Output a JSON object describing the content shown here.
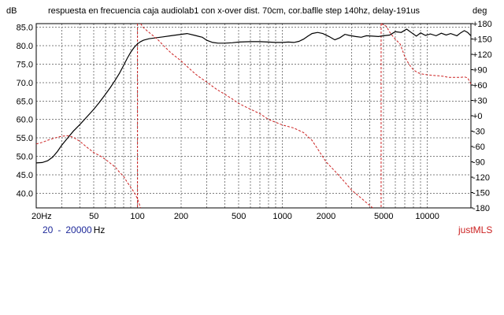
{
  "header": {
    "title": "respuesta en frecuencia caja audiolab1 con x-over dist. 70cm, cor.baflle step 140hz, delay-191us",
    "left_unit": "dB",
    "right_unit": "deg"
  },
  "footer": {
    "range_start": "20",
    "range_sep": "-",
    "range_end": "20000",
    "range_unit": "Hz",
    "brand": "justMLS"
  },
  "colors": {
    "magnitude": "#000000",
    "phase": "#cc2222",
    "grid": "#808080",
    "range_text": "#1f2a9a",
    "brand": "#cc2222"
  },
  "chart_data": {
    "type": "line",
    "title": "respuesta en frecuencia caja audiolab1 con x-over dist. 70cm, cor.baflle step 140hz, delay-191us",
    "x_scale": "log",
    "xlim": [
      20,
      20000
    ],
    "x_tick_labels": [
      "20Hz",
      "50",
      "100",
      "200",
      "500",
      "1000",
      "2000",
      "5000",
      "10000"
    ],
    "x_tick_values": [
      20,
      50,
      100,
      200,
      500,
      1000,
      2000,
      5000,
      10000
    ],
    "ylabel": "dB",
    "ylim": [
      36,
      86
    ],
    "y_tick_labels": [
      "85.0",
      "80.0",
      "75.0",
      "70.0",
      "65.0",
      "60.0",
      "55.0",
      "50.0",
      "45.0",
      "40.0"
    ],
    "y_tick_values": [
      85,
      80,
      75,
      70,
      65,
      60,
      55,
      50,
      45,
      40
    ],
    "y2label": "deg",
    "y2lim": [
      -180,
      180
    ],
    "y2_tick_labels": [
      "+180",
      "+150",
      "+120",
      "+90",
      "+60",
      "+30",
      "+0",
      "-30",
      "-60",
      "-90",
      "-120",
      "-150",
      "-180"
    ],
    "y2_tick_values": [
      180,
      150,
      120,
      90,
      60,
      30,
      0,
      -30,
      -60,
      -90,
      -120,
      -150,
      -180
    ],
    "grid": true,
    "series": [
      {
        "axis": "left",
        "style": "solid",
        "points": [
          [
            20,
            48.2
          ],
          [
            22,
            48.3
          ],
          [
            24,
            48.8
          ],
          [
            26,
            49.8
          ],
          [
            28,
            51.3
          ],
          [
            30,
            53
          ],
          [
            33,
            55
          ],
          [
            36,
            56.8
          ],
          [
            40,
            58.6
          ],
          [
            45,
            60.8
          ],
          [
            50,
            62.8
          ],
          [
            55,
            64.8
          ],
          [
            60,
            66.8
          ],
          [
            65,
            68.7
          ],
          [
            70,
            70.6
          ],
          [
            75,
            72.5
          ],
          [
            80,
            74.6
          ],
          [
            85,
            76.6
          ],
          [
            90,
            78.3
          ],
          [
            95,
            79.6
          ],
          [
            100,
            80.5
          ],
          [
            105,
            81.1
          ],
          [
            110,
            81.5
          ],
          [
            120,
            81.9
          ],
          [
            130,
            82.1
          ],
          [
            150,
            82.4
          ],
          [
            170,
            82.7
          ],
          [
            200,
            83.1
          ],
          [
            220,
            83.3
          ],
          [
            250,
            82.8
          ],
          [
            280,
            82.3
          ],
          [
            300,
            81.5
          ],
          [
            330,
            80.9
          ],
          [
            360,
            80.7
          ],
          [
            400,
            80.7
          ],
          [
            450,
            80.8
          ],
          [
            500,
            81
          ],
          [
            600,
            81.1
          ],
          [
            700,
            81.1
          ],
          [
            800,
            81
          ],
          [
            900,
            80.9
          ],
          [
            1000,
            80.9
          ],
          [
            1100,
            81
          ],
          [
            1200,
            80.9
          ],
          [
            1300,
            81.2
          ],
          [
            1400,
            81.8
          ],
          [
            1500,
            82.6
          ],
          [
            1600,
            83.3
          ],
          [
            1750,
            83.6
          ],
          [
            1900,
            83.3
          ],
          [
            2100,
            82.5
          ],
          [
            2300,
            81.6
          ],
          [
            2500,
            82.2
          ],
          [
            2700,
            83.1
          ],
          [
            2900,
            82.8
          ],
          [
            3200,
            82.5
          ],
          [
            3500,
            82.3
          ],
          [
            3800,
            82.7
          ],
          [
            4200,
            82.6
          ],
          [
            4600,
            82.5
          ],
          [
            5000,
            82.7
          ],
          [
            5500,
            82.9
          ],
          [
            6000,
            83.8
          ],
          [
            6600,
            83.6
          ],
          [
            7200,
            84.5
          ],
          [
            7800,
            83.5
          ],
          [
            8400,
            82.6
          ],
          [
            9000,
            83.5
          ],
          [
            9700,
            82.8
          ],
          [
            10500,
            83.2
          ],
          [
            11500,
            82.7
          ],
          [
            12500,
            83.4
          ],
          [
            13500,
            82.9
          ],
          [
            14500,
            83.3
          ],
          [
            16000,
            82.7
          ],
          [
            17000,
            83.5
          ],
          [
            18000,
            84.1
          ],
          [
            19000,
            83.6
          ],
          [
            20000,
            82.7
          ]
        ]
      },
      {
        "axis": "right",
        "style": "dashed",
        "segments": [
          [
            [
              20,
              -55
            ],
            [
              22,
              -52
            ],
            [
              25,
              -46
            ],
            [
              28,
              -42
            ],
            [
              30,
              -40
            ],
            [
              33,
              -39
            ],
            [
              36,
              -42
            ],
            [
              40,
              -50
            ],
            [
              45,
              -62
            ],
            [
              50,
              -72
            ],
            [
              55,
              -78
            ],
            [
              60,
              -85
            ],
            [
              65,
              -93
            ],
            [
              70,
              -100
            ],
            [
              75,
              -110
            ],
            [
              80,
              -118
            ],
            [
              85,
              -130
            ],
            [
              90,
              -140
            ],
            [
              95,
              -150
            ],
            [
              100,
              -162
            ],
            [
              105,
              -180
            ]
          ],
          [
            [
              105,
              180
            ],
            [
              110,
              172
            ],
            [
              120,
              163
            ],
            [
              130,
              155
            ],
            [
              140,
              147
            ],
            [
              150,
              138
            ],
            [
              170,
              123
            ],
            [
              200,
              107
            ],
            [
              230,
              91
            ],
            [
              260,
              78
            ],
            [
              300,
              66
            ],
            [
              350,
              52
            ],
            [
              400,
              42
            ],
            [
              450,
              33
            ],
            [
              500,
              24
            ],
            [
              600,
              13
            ],
            [
              700,
              4
            ],
            [
              800,
              -7
            ],
            [
              1000,
              -18
            ],
            [
              1200,
              -24
            ],
            [
              1400,
              -33
            ],
            [
              1600,
              -48
            ],
            [
              1800,
              -70
            ],
            [
              2000,
              -90
            ],
            [
              2300,
              -108
            ],
            [
              2700,
              -130
            ],
            [
              3000,
              -145
            ],
            [
              3400,
              -158
            ],
            [
              4000,
              -175
            ],
            [
              4200,
              -180
            ]
          ],
          [
            [
              4800,
              180
            ],
            [
              5200,
              175
            ],
            [
              5600,
              160
            ],
            [
              6000,
              150
            ],
            [
              6500,
              140
            ],
            [
              7000,
              115
            ],
            [
              7500,
              100
            ],
            [
              8000,
              90
            ],
            [
              8500,
              85
            ],
            [
              9000,
              82
            ],
            [
              10000,
              80
            ],
            [
              11000,
              79
            ],
            [
              12000,
              78
            ],
            [
              13000,
              77
            ],
            [
              14000,
              75
            ],
            [
              15000,
              75
            ],
            [
              17000,
              75
            ],
            [
              18000,
              76
            ],
            [
              19000,
              74
            ],
            [
              20000,
              62
            ]
          ]
        ]
      }
    ],
    "vertical_markers": [
      {
        "x": 100,
        "color": "#cc2222",
        "style": "dashed"
      },
      {
        "x": 4800,
        "color": "#cc2222",
        "style": "dashed"
      }
    ]
  }
}
